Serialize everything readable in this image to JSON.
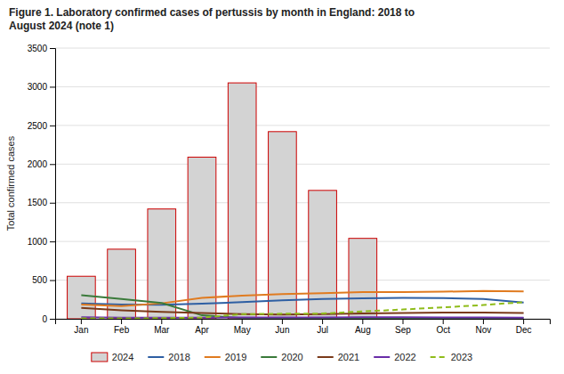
{
  "chart_data": {
    "type": "bar",
    "title": "Figure 1. Laboratory confirmed cases of pertussis by month in England: 2018 to\nAugust 2024 (note 1)",
    "ylabel": "Total confirmed cases",
    "categories": [
      "Jan",
      "Feb",
      "Mar",
      "Apr",
      "May",
      "Jun",
      "Jul",
      "Aug",
      "Sep",
      "Oct",
      "Nov",
      "Dec"
    ],
    "series": [
      {
        "name": "2024",
        "type": "bar",
        "color": "#d3d3d3",
        "values": [
          550,
          900,
          1420,
          2090,
          3050,
          2420,
          1660,
          1040,
          null,
          null,
          null,
          null
        ]
      },
      {
        "name": "2018",
        "type": "line",
        "color": "#2e5fa3",
        "line_style": "solid",
        "values": [
          200,
          185,
          180,
          195,
          215,
          240,
          255,
          265,
          270,
          268,
          255,
          210
        ]
      },
      {
        "name": "2019",
        "type": "line",
        "color": "#e07b20",
        "line_style": "solid",
        "values": [
          185,
          165,
          200,
          270,
          300,
          320,
          330,
          345,
          345,
          350,
          360,
          355
        ]
      },
      {
        "name": "2020",
        "type": "line",
        "color": "#3a7a3a",
        "line_style": "solid",
        "values": [
          305,
          255,
          205,
          45,
          10,
          5,
          5,
          5,
          8,
          8,
          8,
          8
        ]
      },
      {
        "name": "2021",
        "type": "line",
        "color": "#7a3a1a",
        "line_style": "solid",
        "values": [
          140,
          110,
          90,
          75,
          60,
          55,
          60,
          70,
          75,
          80,
          80,
          75
        ]
      },
      {
        "name": "2022",
        "type": "line",
        "color": "#6a2da8",
        "line_style": "solid",
        "values": [
          20,
          15,
          15,
          15,
          18,
          18,
          18,
          20,
          20,
          18,
          16,
          15
        ]
      },
      {
        "name": "2023",
        "type": "line",
        "color": "#8fbc1a",
        "line_style": "dashed",
        "values": [
          5,
          5,
          8,
          15,
          60,
          65,
          68,
          95,
          120,
          148,
          178,
          215
        ]
      }
    ],
    "ylim": [
      0,
      3500
    ],
    "yticks": [
      0,
      500,
      1000,
      1500,
      2000,
      2500,
      3000,
      3500
    ],
    "grid": true,
    "legend": "bottom"
  }
}
